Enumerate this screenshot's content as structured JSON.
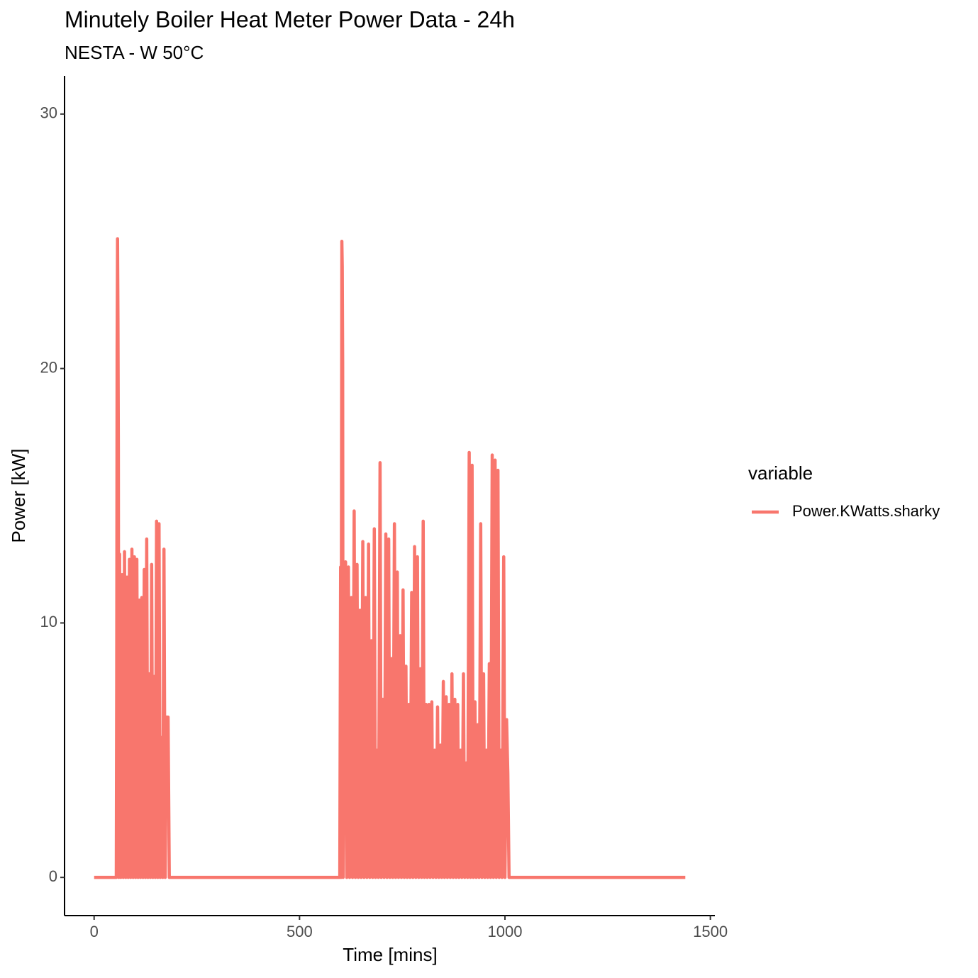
{
  "chart_data": {
    "type": "line",
    "title": "Minutely Boiler Heat Meter Power Data - 24h",
    "subtitle": "NESTA - W 50°C",
    "x_label": "Time [mins]",
    "y_label": "Power [kW]",
    "legend_title": "variable",
    "xlim": [
      -72,
      1511
    ],
    "xticks": [
      0,
      500,
      1000,
      1500
    ],
    "ylim": [
      -1.5,
      31.5
    ],
    "yticks": [
      0,
      10,
      20,
      30
    ],
    "grid": false,
    "legend": "right",
    "x": [
      0,
      54,
      55,
      56,
      57,
      58,
      59,
      60,
      62,
      65,
      68,
      71,
      74,
      77,
      80,
      83,
      86,
      89,
      92,
      95,
      98,
      101,
      104,
      107,
      110,
      113,
      116,
      119,
      122,
      125,
      128,
      131,
      134,
      137,
      140,
      143,
      146,
      149,
      152,
      155,
      158,
      161,
      164,
      167,
      170,
      173,
      176,
      180,
      183,
      598,
      600,
      601,
      603,
      604,
      605,
      606,
      612,
      615,
      619,
      622,
      626,
      629,
      633,
      636,
      640,
      643,
      647,
      650,
      654,
      657,
      661,
      664,
      668,
      671,
      675,
      678,
      682,
      685,
      689,
      692,
      696,
      699,
      703,
      706,
      710,
      713,
      717,
      720,
      724,
      727,
      731,
      734,
      738,
      741,
      745,
      748,
      752,
      755,
      759,
      762,
      766,
      769,
      773,
      776,
      780,
      783,
      787,
      790,
      794,
      797,
      801,
      804,
      808,
      811,
      815,
      818,
      822,
      825,
      829,
      832,
      836,
      839,
      843,
      846,
      850,
      853,
      857,
      860,
      864,
      867,
      871,
      874,
      878,
      881,
      885,
      888,
      892,
      895,
      899,
      902,
      906,
      909,
      913,
      916,
      920,
      923,
      927,
      930,
      934,
      937,
      941,
      944,
      948,
      951,
      955,
      958,
      962,
      965,
      969,
      972,
      976,
      979,
      983,
      986,
      990,
      993,
      997,
      1000,
      1004,
      1007,
      1010,
      1439
    ],
    "series": [
      {
        "name": "Power.KWatts.sharky",
        "color": "#F8766D",
        "values": [
          0,
          0,
          7.6,
          20.8,
          25.1,
          22,
          16.8,
          0,
          12.7,
          0,
          11.9,
          0,
          12.8,
          0,
          11.8,
          0,
          12.5,
          0,
          12.9,
          0,
          12.6,
          0,
          12.5,
          0,
          10.9,
          0,
          11,
          0,
          12.1,
          0,
          13.3,
          0,
          8,
          0,
          12.3,
          0,
          7.9,
          0,
          14,
          0,
          13.9,
          0,
          5.5,
          0,
          12.9,
          0,
          6.3,
          6.3,
          0,
          0,
          12.2,
          0,
          25,
          24,
          20.2,
          0,
          12.4,
          0,
          12.2,
          0,
          11,
          0,
          14.4,
          0,
          12.3,
          0,
          10.5,
          0,
          13.2,
          0,
          11,
          0,
          13.1,
          0,
          9.3,
          0,
          13.7,
          0,
          5,
          0,
          16.3,
          0,
          7,
          0,
          13.5,
          0,
          13.3,
          0,
          8.6,
          0,
          13.9,
          0,
          12,
          0,
          9.5,
          0,
          11.3,
          0,
          8.3,
          0,
          6.8,
          0,
          11.2,
          0,
          13,
          0,
          12.6,
          0,
          8.2,
          0,
          14,
          0,
          6.8,
          0,
          6.8,
          0,
          6.9,
          0,
          5,
          0,
          6.7,
          0,
          5.2,
          0,
          7.7,
          0,
          7.1,
          0,
          6.8,
          0,
          8,
          0,
          7,
          0,
          6.8,
          0,
          5,
          0,
          8,
          0,
          4.5,
          0,
          16.7,
          0,
          16.2,
          0,
          6.9,
          0,
          6,
          0,
          13.9,
          0,
          8,
          0,
          5,
          0,
          8.4,
          0,
          16.6,
          0,
          16.4,
          0,
          16,
          0,
          5,
          0,
          12.6,
          0,
          6.2,
          4.1,
          0,
          0
        ]
      }
    ]
  }
}
